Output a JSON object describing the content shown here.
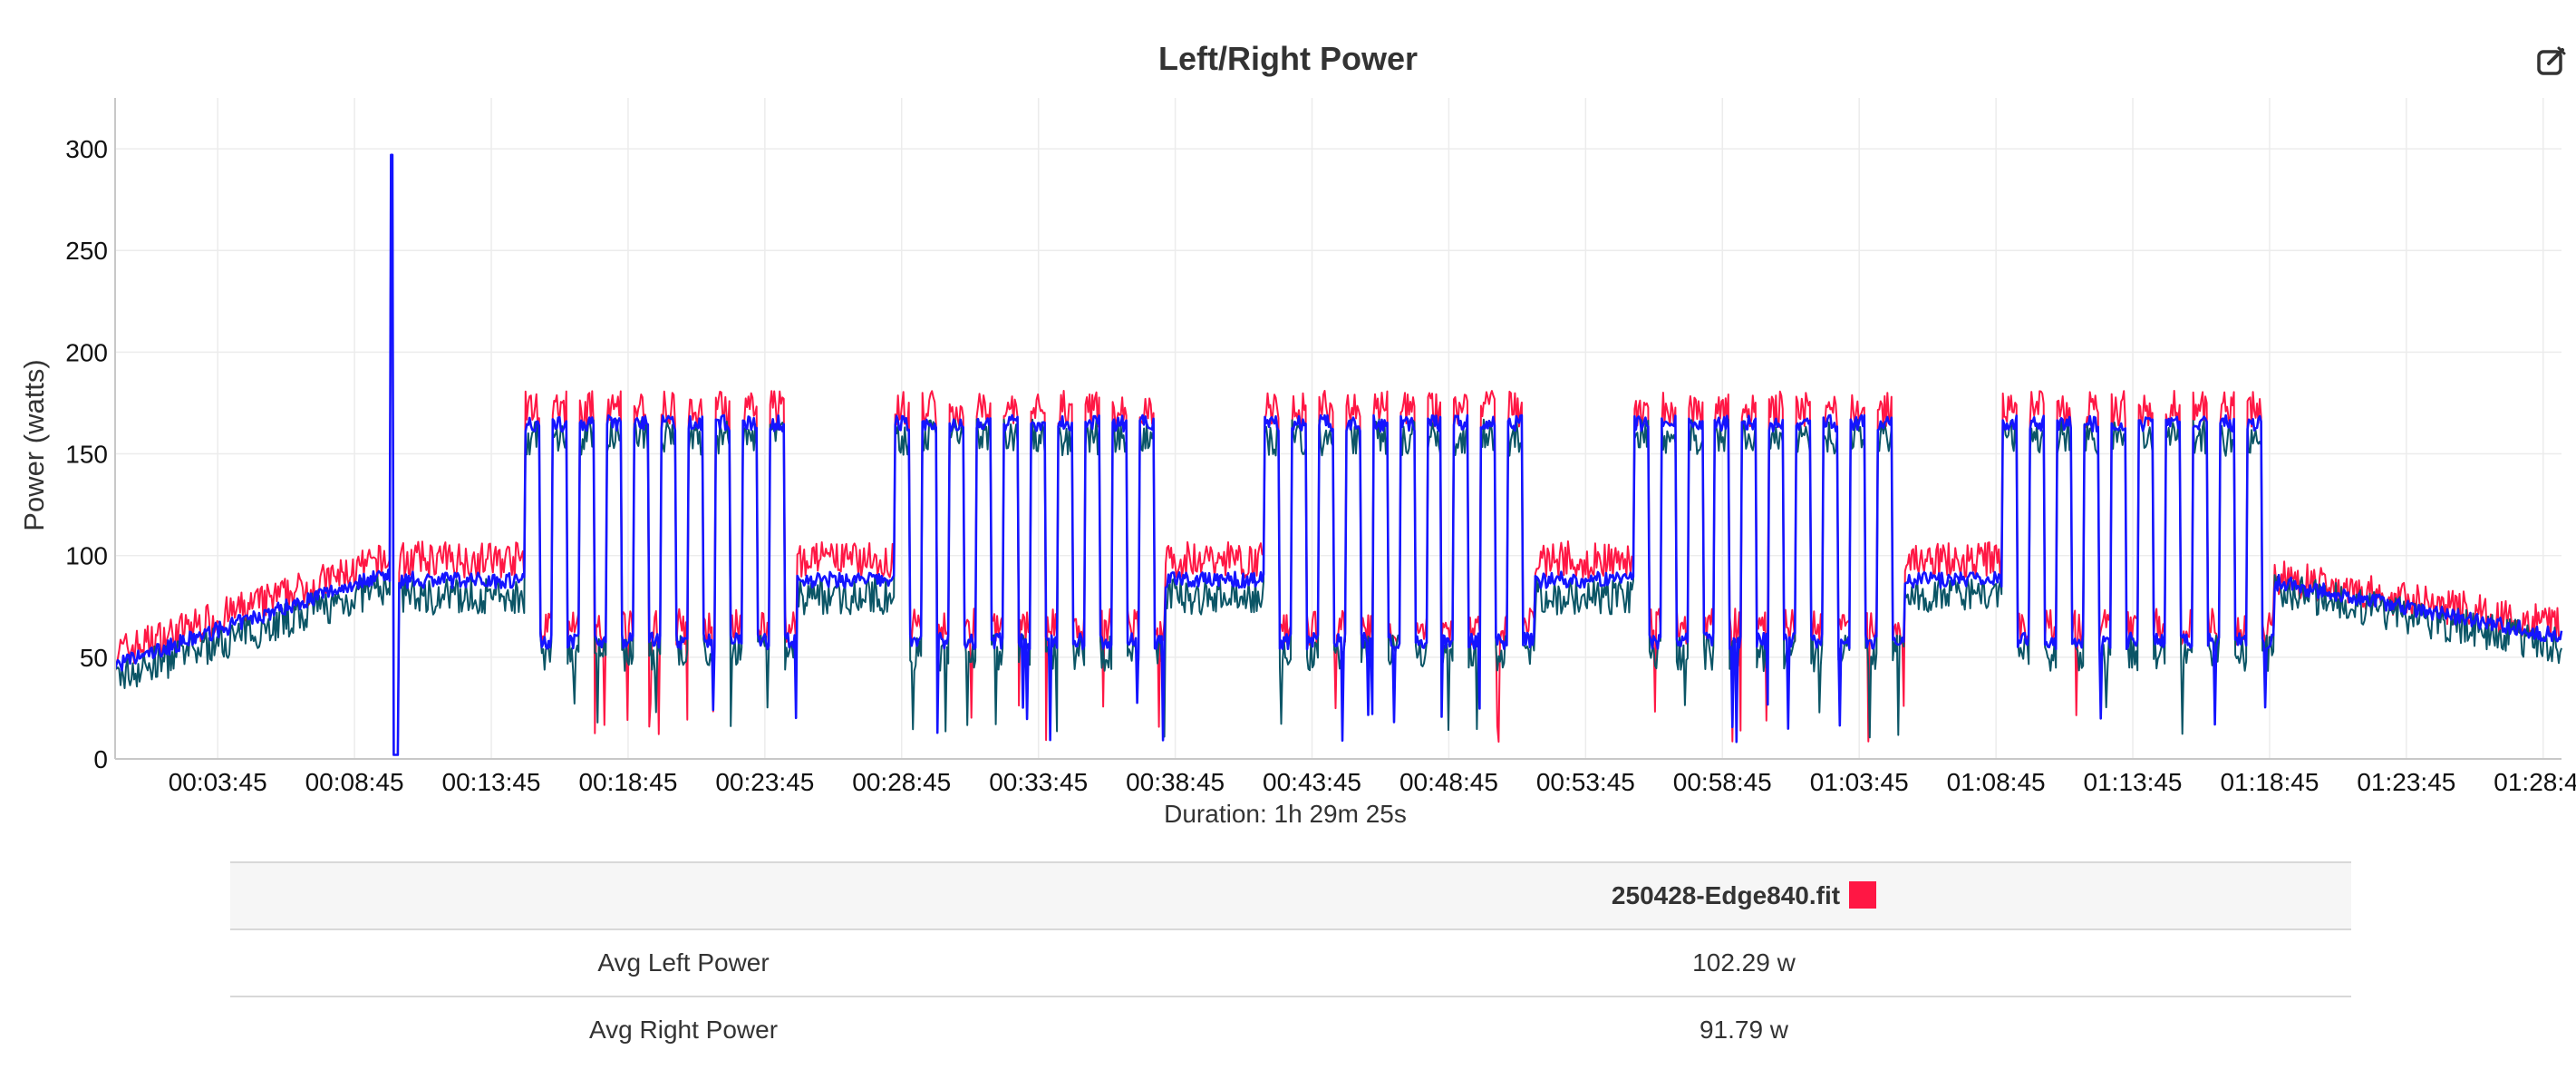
{
  "chart_data": {
    "type": "line",
    "title": "Left/Right Power",
    "xlabel": "Duration: 1h 29m 25s",
    "ylabel": "Power (watts)",
    "ylim": [
      0,
      325
    ],
    "yticks": [
      0,
      50,
      100,
      150,
      200,
      250,
      300
    ],
    "xlim": [
      0,
      89.42
    ],
    "xtick_labels": [
      "00:03:45",
      "00:08:45",
      "00:13:45",
      "00:18:45",
      "00:23:45",
      "00:28:45",
      "00:33:45",
      "00:38:45",
      "00:43:45",
      "00:48:45",
      "00:53:45",
      "00:58:45",
      "01:03:45",
      "01:08:45",
      "01:13:45",
      "01:18:45",
      "01:23:45",
      "01:28:45"
    ],
    "xtick_minutes": [
      3.75,
      8.75,
      13.75,
      18.75,
      23.75,
      28.75,
      33.75,
      38.75,
      43.75,
      48.75,
      53.75,
      58.75,
      63.75,
      68.75,
      73.75,
      78.75,
      83.75,
      88.75
    ],
    "grid": true,
    "series": [
      {
        "color": "#ff1744"
      },
      {
        "color": "#0b5566"
      },
      {
        "color": "#1414ff"
      }
    ],
    "sketch": {
      "warmup": {
        "start_min": 0,
        "end_min": 10,
        "left": [
          52,
          98
        ],
        "right": [
          40,
          85
        ],
        "avg": [
          46,
          92
        ]
      },
      "spike": {
        "at_min": 10.1,
        "value": 297
      },
      "rest_level": {
        "left": 98,
        "right": 80,
        "avg": 88
      },
      "interval_level": {
        "left": 172,
        "right": 158,
        "avg": 165
      },
      "recovery_level": {
        "left": 65,
        "right": 52,
        "avg": 58
      },
      "interval_sets": [
        {
          "start_min": 15.0,
          "end_min": 24.9,
          "reps": 10
        },
        {
          "start_min": 28.5,
          "end_min": 38.4,
          "reps": 10
        },
        {
          "start_min": 42.0,
          "end_min": 51.9,
          "reps": 10
        },
        {
          "start_min": 55.5,
          "end_min": 65.4,
          "reps": 10
        },
        {
          "start_min": 69.0,
          "end_min": 78.9,
          "reps": 10
        }
      ],
      "cooldown": {
        "start_min": 78.9,
        "end_min": 89.42,
        "left": [
          90,
          65
        ],
        "right": [
          84,
          55
        ],
        "avg": [
          87,
          60
        ]
      }
    }
  },
  "edit_icon": "edit-icon",
  "table": {
    "file_name": "250428-Edge840.fit",
    "file_color": "#ff1744",
    "rows": [
      {
        "label": "Avg Left Power",
        "value": "102.29 w"
      },
      {
        "label": "Avg Right Power",
        "value": "91.79 w"
      }
    ]
  }
}
